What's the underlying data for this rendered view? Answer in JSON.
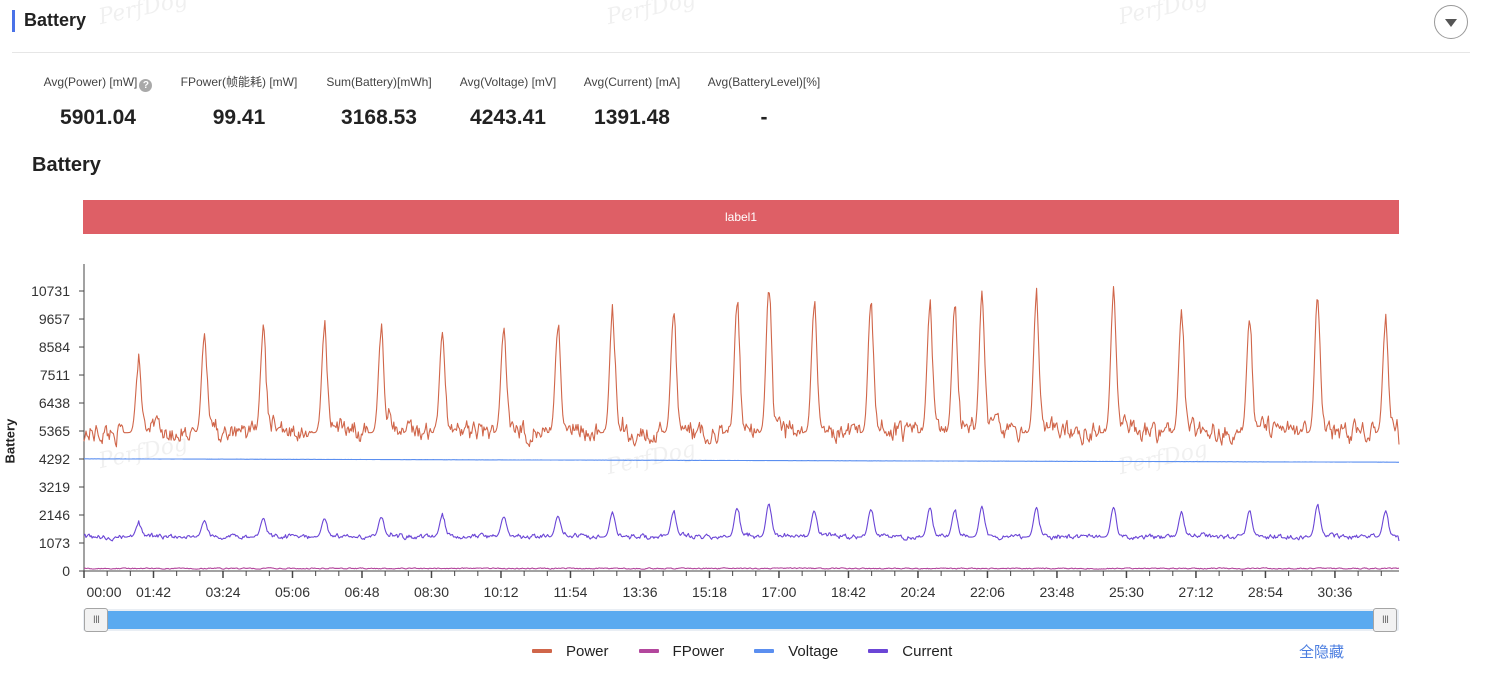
{
  "panel": {
    "title": "Battery",
    "watermark": "PerfDog",
    "stats": [
      {
        "label": "Avg(Power) [mW]",
        "value": "5901.04",
        "help": "?"
      },
      {
        "label": "FPower(帧能耗) [mW]",
        "value": "99.41"
      },
      {
        "label": "Sum(Battery)[mWh]",
        "value": "3168.53"
      },
      {
        "label": "Avg(Voltage) [mV]",
        "value": "4243.41"
      },
      {
        "label": "Avg(Current) [mA]",
        "value": "1391.48"
      },
      {
        "label": "Avg(BatteryLevel)[%]",
        "value": "-"
      }
    ]
  },
  "chart_data": {
    "type": "line",
    "title": "Battery",
    "ylabel": "Battery",
    "band_label": "label1",
    "ylim": [
      0,
      11500
    ],
    "y_ticks": [
      0,
      1073,
      2146,
      3219,
      4292,
      5365,
      6438,
      7511,
      8584,
      9657,
      10731
    ],
    "x_ticks": [
      "00:00",
      "01:42",
      "03:24",
      "05:06",
      "06:48",
      "08:30",
      "10:12",
      "11:54",
      "13:36",
      "15:18",
      "17:00",
      "18:42",
      "20:24",
      "22:06",
      "23:48",
      "25:30",
      "27:12",
      "28:54",
      "30:36"
    ],
    "x_range_seconds": [
      0,
      1930
    ],
    "series": [
      {
        "name": "Power",
        "color": "#d0664a",
        "baseline": 5300,
        "noise": 450,
        "peaks": [
          [
            120,
            7800
          ],
          [
            265,
            8900
          ],
          [
            395,
            9100
          ],
          [
            530,
            9200
          ],
          [
            655,
            9050
          ],
          [
            790,
            9000
          ],
          [
            925,
            9100
          ],
          [
            1045,
            9250
          ],
          [
            1165,
            9750
          ],
          [
            1300,
            9750
          ],
          [
            1440,
            10150
          ],
          [
            1510,
            10731
          ],
          [
            1610,
            10050
          ],
          [
            1735,
            10200
          ],
          [
            1865,
            10000
          ],
          [
            1920,
            10100
          ],
          [
            1980,
            10450
          ],
          [
            2100,
            10400
          ],
          [
            2270,
            10450
          ],
          [
            2420,
            9700
          ],
          [
            2570,
            9600
          ],
          [
            2720,
            10450
          ],
          [
            2870,
            9400
          ]
        ],
        "end_value": 4850
      },
      {
        "name": "FPower",
        "color": "#b3479d",
        "baseline": 99,
        "noise": 25,
        "peaks": []
      },
      {
        "name": "Voltage",
        "color": "#5b8ff0",
        "start": 4300,
        "end": 4170,
        "noise": 5,
        "peaks": []
      },
      {
        "name": "Current",
        "color": "#6b46d6",
        "baseline": 1300,
        "noise": 110,
        "peaks": [
          [
            120,
            1800
          ],
          [
            265,
            1900
          ],
          [
            395,
            2000
          ],
          [
            530,
            2000
          ],
          [
            655,
            2050
          ],
          [
            790,
            2100
          ],
          [
            925,
            2050
          ],
          [
            1045,
            2100
          ],
          [
            1165,
            2200
          ],
          [
            1300,
            2250
          ],
          [
            1440,
            2400
          ],
          [
            1510,
            2550
          ],
          [
            1610,
            2300
          ],
          [
            1735,
            2350
          ],
          [
            1865,
            2400
          ],
          [
            1920,
            2300
          ],
          [
            1980,
            2450
          ],
          [
            2100,
            2400
          ],
          [
            2270,
            2400
          ],
          [
            2420,
            2200
          ],
          [
            2570,
            2300
          ],
          [
            2720,
            2500
          ],
          [
            2870,
            2250
          ]
        ],
        "end_value": 1150
      }
    ],
    "legend_position": "bottom",
    "grid": false
  },
  "slider": {
    "handle_left": "III",
    "handle_right": "III"
  },
  "legend": {
    "hide_all_label": "全隐藏"
  }
}
